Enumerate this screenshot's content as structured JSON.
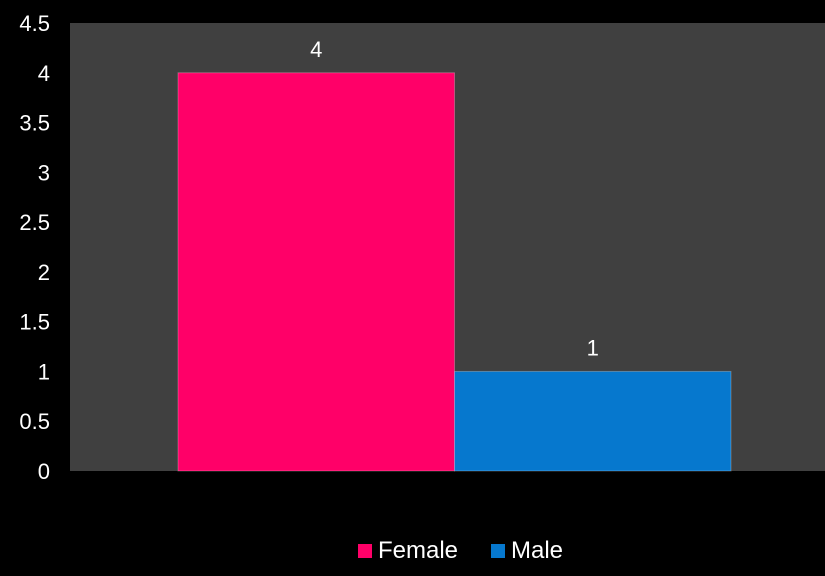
{
  "chart_data": {
    "type": "bar",
    "title": "",
    "xlabel": "",
    "ylabel": "",
    "ylim": [
      0,
      4.5
    ],
    "yticks": [
      "0",
      "0.5",
      "1",
      "1.5",
      "2",
      "2.5",
      "3",
      "3.5",
      "4",
      "4.5"
    ],
    "grid": false,
    "legend_position": "bottom",
    "series": [
      {
        "name": "Female",
        "values": [
          4
        ],
        "data_label": "4",
        "color": "#FF0068"
      },
      {
        "name": "Male",
        "values": [
          1
        ],
        "data_label": "1",
        "color": "#0678CE"
      }
    ],
    "colors": {
      "background": "#000000",
      "plot_area": "#404040"
    }
  }
}
